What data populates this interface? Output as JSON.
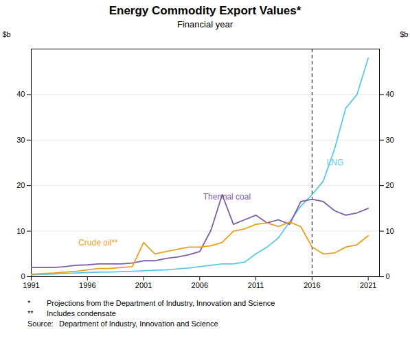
{
  "chart_data": {
    "type": "line",
    "title": "Energy Commodity Export Values*",
    "subtitle": "Financial year",
    "ylabel": "$b",
    "y2label": "$b",
    "x": [
      1991,
      1992,
      1993,
      1994,
      1995,
      1996,
      1997,
      1998,
      1999,
      2000,
      2001,
      2002,
      2003,
      2004,
      2005,
      2006,
      2007,
      2008,
      2009,
      2010,
      2011,
      2012,
      2013,
      2014,
      2015,
      2016,
      2017,
      2018,
      2019,
      2020,
      2021
    ],
    "series": [
      {
        "name": "LNG",
        "color": "#5bc8e8",
        "values": [
          0.4,
          0.5,
          0.6,
          0.7,
          0.8,
          0.9,
          1.0,
          1.0,
          1.1,
          1.2,
          1.3,
          1.4,
          1.5,
          1.7,
          1.9,
          2.2,
          2.5,
          2.8,
          2.8,
          3.2,
          5.0,
          6.5,
          8.5,
          12.0,
          15.5,
          18.0,
          21.0,
          28.0,
          37.0,
          40.0,
          48.0
        ]
      },
      {
        "name": "Thermal coal",
        "color": "#7b5ea7",
        "values": [
          2.0,
          2.0,
          2.0,
          2.2,
          2.5,
          2.6,
          2.8,
          2.8,
          2.8,
          3.0,
          3.5,
          3.5,
          4.0,
          4.3,
          4.8,
          5.5,
          10.2,
          18.0,
          11.5,
          12.5,
          13.5,
          11.8,
          12.5,
          11.5,
          16.5,
          17.0,
          16.5,
          14.5,
          13.5,
          14.0,
          15.0
        ]
      },
      {
        "name": "Crude oil**",
        "color": "#e8a020",
        "values": [
          0.5,
          0.7,
          0.8,
          1.0,
          1.2,
          1.5,
          1.8,
          1.8,
          2.0,
          2.2,
          7.5,
          5.0,
          5.5,
          6.0,
          6.5,
          6.5,
          6.8,
          7.5,
          10.0,
          10.5,
          11.5,
          11.8,
          11.0,
          12.0,
          11.0,
          6.5,
          5.0,
          5.2,
          6.5,
          7.0,
          9.0
        ]
      }
    ],
    "annotations": [
      {
        "text": "LNG",
        "x": 2017.3,
        "y": 25,
        "color": "#5bc8e8"
      },
      {
        "text": "Thermal coal",
        "x": 2006.3,
        "y": 17.5,
        "color": "#7b5ea7"
      },
      {
        "text": "Crude oil**",
        "x": 1995.2,
        "y": 7.5,
        "color": "#e8a020"
      }
    ],
    "vline": {
      "x": 2016,
      "line_style": "dashed"
    },
    "xlim": [
      1991,
      2022
    ],
    "xticks": [
      1991,
      1996,
      2001,
      2006,
      2011,
      2016,
      2021
    ],
    "ylim": [
      0,
      50
    ],
    "yticks": [
      0,
      10,
      20,
      30,
      40
    ],
    "y2lim": [
      0,
      50
    ],
    "y2ticks": [
      0,
      10,
      20,
      30,
      40
    ],
    "grid": "y",
    "footnotes": [
      [
        "*",
        "Projections from the Department of Industry, Innovation and Science"
      ],
      [
        "**",
        "Includes condensate"
      ],
      [
        "Source:",
        "Department of Industry, Innovation and Science"
      ]
    ]
  }
}
